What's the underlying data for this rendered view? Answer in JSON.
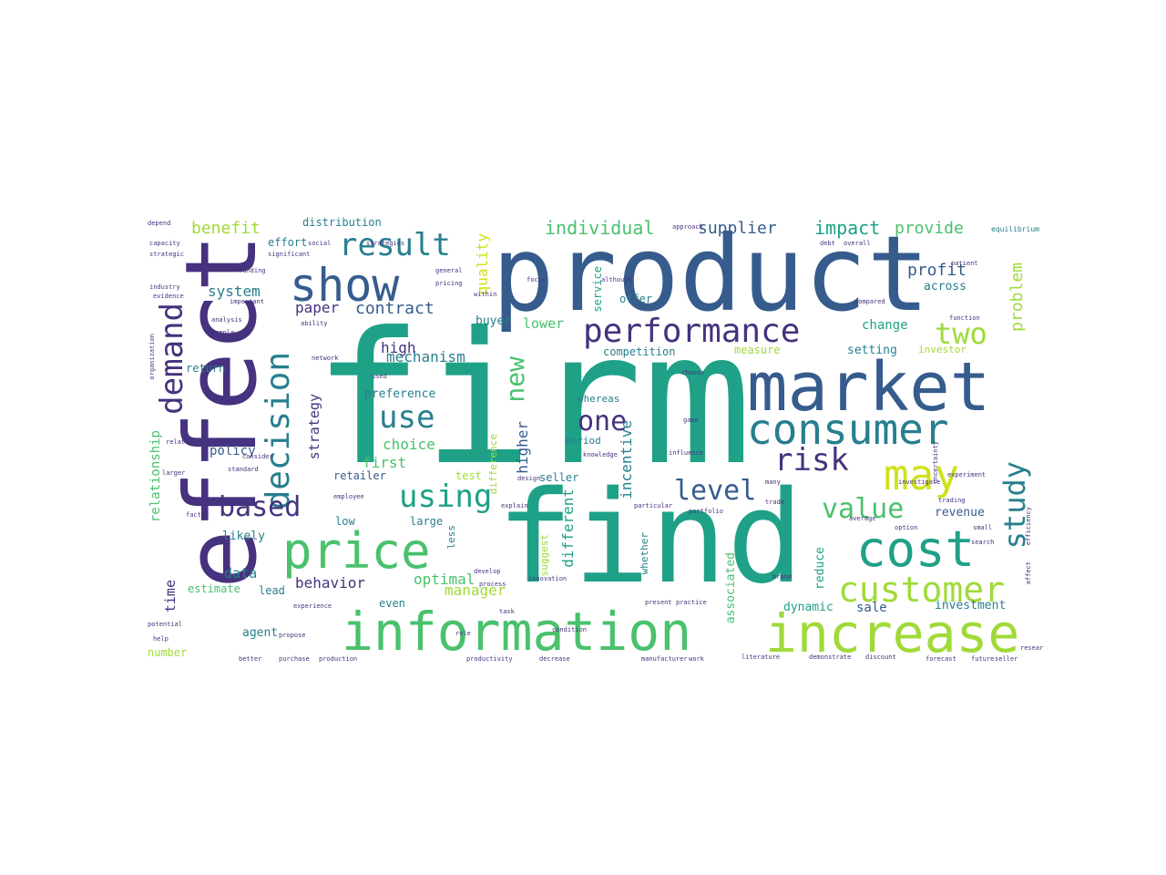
{
  "palette": {
    "purple": "#46327e",
    "blue": "#365c8d",
    "steel": "#277f8e",
    "teal": "#1fa187",
    "green": "#4ac16d",
    "lime": "#a0da39",
    "yellow": "#fde725"
  },
  "words": [
    {
      "id": "firm",
      "text": "firm"
    },
    {
      "id": "product",
      "text": "product"
    },
    {
      "id": "find",
      "text": "find"
    },
    {
      "id": "effect",
      "text": "effect"
    },
    {
      "id": "market",
      "text": "market"
    },
    {
      "id": "information",
      "text": "information"
    },
    {
      "id": "increase",
      "text": "increase"
    },
    {
      "id": "consumer",
      "text": "consumer"
    },
    {
      "id": "price",
      "text": "price"
    },
    {
      "id": "cost",
      "text": "cost"
    },
    {
      "id": "show",
      "text": "show"
    },
    {
      "id": "performance",
      "text": "performance"
    },
    {
      "id": "customer",
      "text": "customer"
    },
    {
      "id": "may",
      "text": "may"
    },
    {
      "id": "decision",
      "text": "decision"
    },
    {
      "id": "demand",
      "text": "demand"
    },
    {
      "id": "result",
      "text": "result"
    },
    {
      "id": "using",
      "text": "using"
    },
    {
      "id": "use",
      "text": "use"
    },
    {
      "id": "based",
      "text": "based"
    },
    {
      "id": "value",
      "text": "value"
    },
    {
      "id": "risk",
      "text": "risk"
    },
    {
      "id": "study",
      "text": "study"
    },
    {
      "id": "two",
      "text": "two"
    },
    {
      "id": "one",
      "text": "one"
    },
    {
      "id": "level",
      "text": "level"
    },
    {
      "id": "new",
      "text": "new"
    },
    {
      "id": "individual",
      "text": "individual"
    },
    {
      "id": "supplier",
      "text": "supplier"
    },
    {
      "id": "impact",
      "text": "impact"
    },
    {
      "id": "provide",
      "text": "provide"
    },
    {
      "id": "benefit",
      "text": "benefit"
    },
    {
      "id": "distribution",
      "text": "distribution"
    },
    {
      "id": "profit",
      "text": "profit"
    },
    {
      "id": "problem",
      "text": "problem"
    },
    {
      "id": "contract",
      "text": "contract"
    },
    {
      "id": "mechanism",
      "text": "mechanism"
    },
    {
      "id": "system",
      "text": "system"
    },
    {
      "id": "paper",
      "text": "paper"
    },
    {
      "id": "quality",
      "text": "quality"
    },
    {
      "id": "higher",
      "text": "higher"
    },
    {
      "id": "incentive",
      "text": "incentive"
    },
    {
      "id": "different",
      "text": "different"
    },
    {
      "id": "optimal",
      "text": "optimal"
    },
    {
      "id": "behavior",
      "text": "behavior"
    },
    {
      "id": "manager",
      "text": "manager"
    },
    {
      "id": "choice",
      "text": "choice"
    },
    {
      "id": "preference",
      "text": "preference"
    },
    {
      "id": "strategy",
      "text": "strategy"
    },
    {
      "id": "policy",
      "text": "policy"
    },
    {
      "id": "first",
      "text": "first"
    },
    {
      "id": "high",
      "text": "high"
    },
    {
      "id": "lower",
      "text": "lower"
    },
    {
      "id": "change",
      "text": "change"
    },
    {
      "id": "setting",
      "text": "setting"
    },
    {
      "id": "competition",
      "text": "competition"
    },
    {
      "id": "relationship",
      "text": "relationship"
    },
    {
      "id": "time",
      "text": "time"
    },
    {
      "id": "data",
      "text": "data"
    },
    {
      "id": "sale",
      "text": "sale"
    },
    {
      "id": "investment",
      "text": "investment"
    },
    {
      "id": "revenue",
      "text": "revenue"
    },
    {
      "id": "dynamic",
      "text": "dynamic"
    },
    {
      "id": "reduce",
      "text": "reduce"
    },
    {
      "id": "associated",
      "text": "associated"
    },
    {
      "id": "buyer",
      "text": "buyer"
    },
    {
      "id": "offer",
      "text": "offer"
    },
    {
      "id": "service",
      "text": "service"
    },
    {
      "id": "across",
      "text": "across"
    },
    {
      "id": "effort",
      "text": "effort"
    },
    {
      "id": "return",
      "text": "return"
    },
    {
      "id": "likely",
      "text": "likely"
    },
    {
      "id": "agent",
      "text": "agent"
    },
    {
      "id": "estimate",
      "text": "estimate"
    },
    {
      "id": "lead",
      "text": "lead"
    },
    {
      "id": "even",
      "text": "even"
    },
    {
      "id": "retailer",
      "text": "retailer"
    },
    {
      "id": "test",
      "text": "test"
    },
    {
      "id": "seller",
      "text": "seller"
    },
    {
      "id": "whereas",
      "text": "whereas"
    },
    {
      "id": "period",
      "text": "period"
    },
    {
      "id": "large",
      "text": "large"
    },
    {
      "id": "low",
      "text": "low"
    },
    {
      "id": "suggest",
      "text": "suggest"
    },
    {
      "id": "number",
      "text": "number"
    },
    {
      "id": "measure",
      "text": "measure"
    },
    {
      "id": "investor",
      "text": "investor"
    },
    {
      "id": "difference",
      "text": "difference"
    },
    {
      "id": "whether",
      "text": "whether"
    },
    {
      "id": "less",
      "text": "less"
    },
    {
      "id": "depend",
      "text": "depend"
    },
    {
      "id": "equilibrium",
      "text": "equilibrium"
    },
    {
      "id": "analysis",
      "text": "analysis"
    },
    {
      "id": "capacity",
      "text": "capacity"
    },
    {
      "id": "strategic",
      "text": "strategic"
    },
    {
      "id": "industry",
      "text": "industry"
    },
    {
      "id": "evidence",
      "text": "evidence"
    },
    {
      "id": "important",
      "text": "important"
    },
    {
      "id": "significant",
      "text": "significant"
    },
    {
      "id": "general",
      "text": "general"
    },
    {
      "id": "although",
      "text": "although"
    },
    {
      "id": "compared",
      "text": "compared"
    },
    {
      "id": "knowledge",
      "text": "knowledge"
    },
    {
      "id": "function",
      "text": "function"
    },
    {
      "id": "employee",
      "text": "employee"
    },
    {
      "id": "experience",
      "text": "experience"
    },
    {
      "id": "literature",
      "text": "literature"
    },
    {
      "id": "demonstrate",
      "text": "demonstrate"
    },
    {
      "id": "purchase",
      "text": "purchase"
    },
    {
      "id": "production",
      "text": "production"
    },
    {
      "id": "productivity",
      "text": "productivity"
    },
    {
      "id": "decrease",
      "text": "decrease"
    },
    {
      "id": "manufacturer",
      "text": "manufacturer"
    },
    {
      "id": "work",
      "text": "work"
    },
    {
      "id": "future",
      "text": "future"
    },
    {
      "id": "seller2",
      "text": "seller"
    },
    {
      "id": "trading",
      "text": "trading"
    },
    {
      "id": "search",
      "text": "search"
    },
    {
      "id": "research",
      "text": "research"
    },
    {
      "id": "brand",
      "text": "brand"
    },
    {
      "id": "propose",
      "text": "propose"
    },
    {
      "id": "better",
      "text": "better"
    },
    {
      "id": "help",
      "text": "help"
    },
    {
      "id": "potential",
      "text": "potential"
    },
    {
      "id": "develop",
      "text": "develop"
    },
    {
      "id": "process",
      "text": "process"
    },
    {
      "id": "explain",
      "text": "explain"
    },
    {
      "id": "design",
      "text": "design"
    },
    {
      "id": "particular",
      "text": "particular"
    },
    {
      "id": "portfolio",
      "text": "portfolio"
    },
    {
      "id": "standard",
      "text": "standard"
    },
    {
      "id": "factor",
      "text": "factor"
    },
    {
      "id": "larger",
      "text": "larger"
    },
    {
      "id": "consider",
      "text": "consider"
    },
    {
      "id": "related",
      "text": "related"
    },
    {
      "id": "sample",
      "text": "sample"
    },
    {
      "id": "ability",
      "text": "ability"
    },
    {
      "id": "network",
      "text": "network"
    },
    {
      "id": "pricing",
      "text": "pricing"
    },
    {
      "id": "within",
      "text": "within"
    },
    {
      "id": "approach",
      "text": "approach"
    },
    {
      "id": "patient",
      "text": "patient"
    },
    {
      "id": "debt",
      "text": "debt"
    },
    {
      "id": "overall",
      "text": "overall"
    },
    {
      "id": "option",
      "text": "option"
    },
    {
      "id": "average",
      "text": "average"
    },
    {
      "id": "small",
      "text": "small"
    },
    {
      "id": "trade",
      "text": "trade"
    },
    {
      "id": "many",
      "text": "many"
    },
    {
      "id": "condition",
      "text": "condition"
    },
    {
      "id": "role",
      "text": "role"
    },
    {
      "id": "task",
      "text": "task"
    },
    {
      "id": "focus",
      "text": "focus"
    },
    {
      "id": "game",
      "text": "game"
    },
    {
      "id": "social",
      "text": "social"
    },
    {
      "id": "strategies",
      "text": "strategies"
    },
    {
      "id": "funding",
      "text": "funding"
    },
    {
      "id": "choose",
      "text": "choose"
    },
    {
      "id": "innovation",
      "text": "innovation"
    },
    {
      "id": "used",
      "text": "used"
    },
    {
      "id": "organization",
      "text": "organization"
    },
    {
      "id": "uncertainty",
      "text": "uncertainty"
    },
    {
      "id": "affect",
      "text": "affect"
    },
    {
      "id": "experiment",
      "text": "experiment"
    },
    {
      "id": "efficiency",
      "text": "efficiency"
    },
    {
      "id": "forecast",
      "text": "forecast"
    },
    {
      "id": "discount",
      "text": "discount"
    },
    {
      "id": "present",
      "text": "present"
    },
    {
      "id": "practice",
      "text": "practice"
    },
    {
      "id": "investigate",
      "text": "investigate"
    },
    {
      "id": "influence",
      "text": "influence"
    }
  ]
}
